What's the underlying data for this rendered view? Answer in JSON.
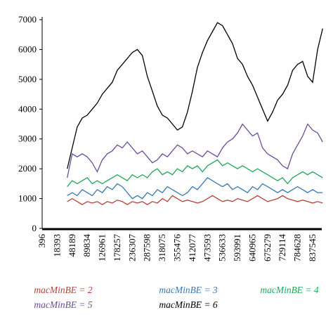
{
  "chart_data": {
    "type": "line",
    "categories": [
      "396",
      null,
      null,
      "18393",
      null,
      null,
      "48189",
      null,
      null,
      "89834",
      null,
      null,
      "126961",
      null,
      null,
      "178257",
      null,
      null,
      "236307",
      null,
      null,
      "287598",
      null,
      null,
      "318075",
      null,
      null,
      "355476",
      null,
      null,
      "412077",
      null,
      null,
      "473593",
      null,
      null,
      "536633",
      null,
      null,
      "593991",
      null,
      null,
      "640965",
      null,
      null,
      "675279",
      null,
      null,
      "729114",
      null,
      null,
      "784628",
      null,
      null,
      "837545",
      null,
      null
    ],
    "ylim": [
      0,
      7000
    ],
    "yticks": [
      0,
      1000,
      2000,
      3000,
      4000,
      5000,
      6000,
      7000
    ],
    "series": [
      {
        "name": "macMinBE = 2",
        "color": "#b5433a",
        "values": [
          null,
          null,
          null,
          null,
          null,
          900,
          1000,
          900,
          800,
          900,
          850,
          900,
          800,
          900,
          850,
          950,
          900,
          800,
          900,
          850,
          900,
          800,
          900,
          850,
          1000,
          900,
          1100,
          1000,
          900,
          950,
          900,
          850,
          900,
          1000,
          1100,
          1000,
          900,
          950,
          900,
          1000,
          950,
          900,
          1000,
          1100,
          1000,
          900,
          950,
          1000,
          1100,
          1000,
          950,
          900,
          950,
          900,
          850,
          900,
          850
        ]
      },
      {
        "name": "macMinBE = 3",
        "color": "#3a78b5",
        "values": [
          null,
          null,
          null,
          null,
          null,
          1100,
          1200,
          1100,
          1300,
          1200,
          1100,
          1300,
          1200,
          1400,
          1300,
          1500,
          1400,
          1200,
          1000,
          1100,
          1000,
          1200,
          1100,
          1300,
          1200,
          1400,
          1300,
          1200,
          1100,
          1200,
          1400,
          1300,
          1500,
          1700,
          1600,
          1500,
          1400,
          1500,
          1300,
          1400,
          1300,
          1200,
          1400,
          1300,
          1500,
          1400,
          1300,
          1200,
          1300,
          1200,
          1300,
          1400,
          1300,
          1200,
          1300,
          1200,
          1200
        ]
      },
      {
        "name": "macMinBE = 4",
        "color": "#1fa85a",
        "values": [
          null,
          null,
          null,
          null,
          null,
          1400,
          1600,
          1500,
          1600,
          1700,
          1500,
          1600,
          1500,
          1600,
          1700,
          1800,
          1700,
          1600,
          1800,
          1700,
          1800,
          1700,
          1900,
          2000,
          1800,
          1900,
          1800,
          2000,
          1900,
          2100,
          2000,
          2100,
          1900,
          2100,
          2200,
          2300,
          2100,
          2200,
          2100,
          2000,
          2100,
          2000,
          1900,
          2000,
          1900,
          1800,
          1700,
          1600,
          1700,
          1500,
          1700,
          1800,
          1900,
          1800,
          1900,
          1800,
          1700
        ]
      },
      {
        "name": "macMinBE = 5",
        "color": "#6b4c9a",
        "values": [
          null,
          null,
          null,
          null,
          null,
          1700,
          2500,
          2400,
          2500,
          2400,
          2200,
          1900,
          2300,
          2500,
          2600,
          2800,
          2700,
          2900,
          2700,
          2500,
          2600,
          2400,
          2200,
          2300,
          2500,
          2400,
          2600,
          2800,
          2700,
          2500,
          2600,
          2500,
          2400,
          2600,
          2500,
          2400,
          2700,
          2900,
          3000,
          3200,
          3500,
          3300,
          3100,
          3200,
          2700,
          2500,
          2400,
          2300,
          2100,
          2000,
          2500,
          2800,
          3100,
          3500,
          3300,
          3200,
          2900
        ]
      },
      {
        "name": "macMinBE = 6",
        "color": "#000000",
        "values": [
          null,
          null,
          null,
          null,
          null,
          2000,
          2700,
          3400,
          3700,
          3800,
          4000,
          4200,
          4500,
          4700,
          4900,
          5300,
          5500,
          5700,
          5900,
          6000,
          5800,
          5100,
          4600,
          4100,
          3800,
          3700,
          3500,
          3300,
          3400,
          3900,
          4600,
          5400,
          5900,
          6300,
          6600,
          6900,
          6800,
          6500,
          6200,
          5700,
          5500,
          5100,
          4800,
          4400,
          4000,
          3600,
          3900,
          4300,
          4500,
          4800,
          5300,
          5500,
          5600,
          5100,
          4900,
          6000,
          6700
        ]
      }
    ]
  }
}
